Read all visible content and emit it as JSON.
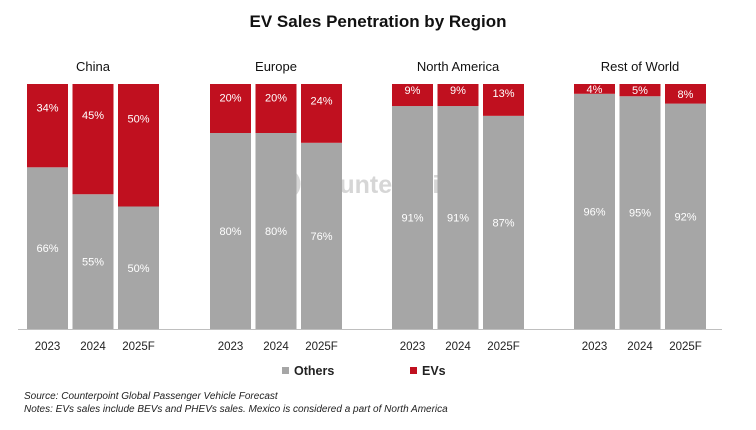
{
  "chart_data": {
    "type": "bar",
    "stacked": true,
    "title": "EV Sales Penetration by Region",
    "unit": "%",
    "ylim": [
      0,
      100
    ],
    "grid": false,
    "legend_position": "bottom-center",
    "regions": [
      {
        "name": "China",
        "categories": [
          "2023",
          "2024",
          "2025F"
        ],
        "others": [
          66,
          55,
          50
        ],
        "evs": [
          34,
          45,
          50
        ]
      },
      {
        "name": "Europe",
        "categories": [
          "2023",
          "2024",
          "2025F"
        ],
        "others": [
          80,
          80,
          76
        ],
        "evs": [
          20,
          20,
          24
        ]
      },
      {
        "name": "North America",
        "categories": [
          "2023",
          "2024",
          "2025F"
        ],
        "others": [
          91,
          91,
          87
        ],
        "evs": [
          9,
          9,
          13
        ]
      },
      {
        "name": "Rest of World",
        "categories": [
          "2023",
          "2024",
          "2025F"
        ],
        "others": [
          96,
          95,
          92
        ],
        "evs": [
          4,
          5,
          8
        ]
      }
    ],
    "series": [
      {
        "key": "others",
        "name": "Others",
        "color": "#a6a6a6"
      },
      {
        "key": "evs",
        "name": "EVs",
        "color": "#c0101f"
      }
    ]
  },
  "watermark": {
    "text": "Counterpoint"
  },
  "footnotes": {
    "source": "Source: Counterpoint Global Passenger Vehicle Forecast",
    "notes": "Notes: EVs sales include BEVs and PHEVs sales. Mexico is considered a part of North America"
  }
}
